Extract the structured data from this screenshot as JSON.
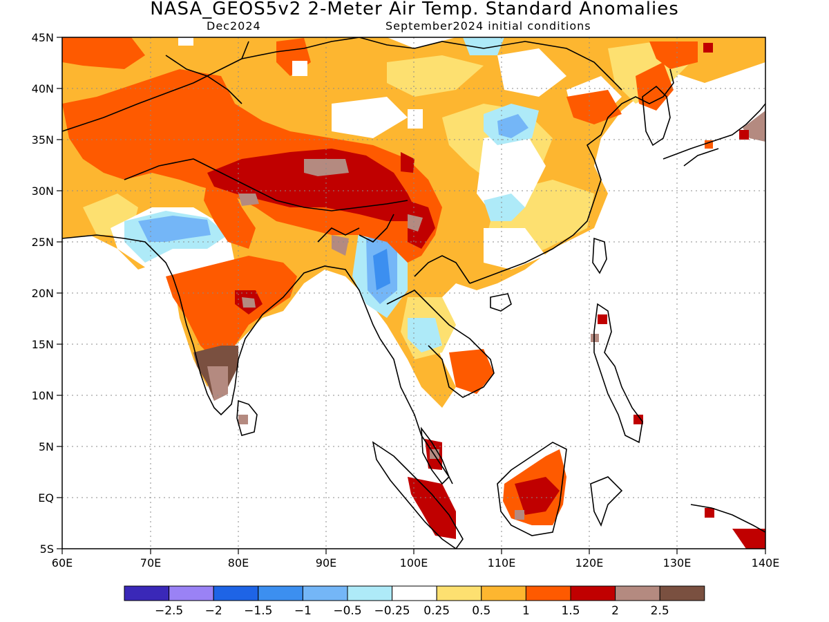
{
  "title": "NASA_GEOS5v2 2-Meter Air Temp. Standard Anomalies",
  "subtitle_left": "Dec2024",
  "subtitle_right": "September2024 initial conditions",
  "axes": {
    "lon_labels": [
      "60E",
      "70E",
      "80E",
      "90E",
      "100E",
      "110E",
      "120E",
      "130E",
      "140E"
    ],
    "lat_labels": [
      "5S",
      "EQ",
      "5N",
      "10N",
      "15N",
      "20N",
      "25N",
      "30N",
      "35N",
      "40N",
      "45N"
    ]
  },
  "colorbar": {
    "colors": [
      "#3a28b8",
      "#9a82f5",
      "#1e64e6",
      "#3c8ff0",
      "#74b6f7",
      "#aeeaf8",
      "#ffffff",
      "#fde070",
      "#fdb630",
      "#fe5a00",
      "#c00000",
      "#b48a80",
      "#7a5040"
    ],
    "labels": [
      "-2.5",
      "-2",
      "-1.5",
      "-1",
      "-0.5",
      "-0.25",
      "0.25",
      "0.5",
      "1",
      "1.5",
      "2",
      "2.5"
    ]
  }
}
